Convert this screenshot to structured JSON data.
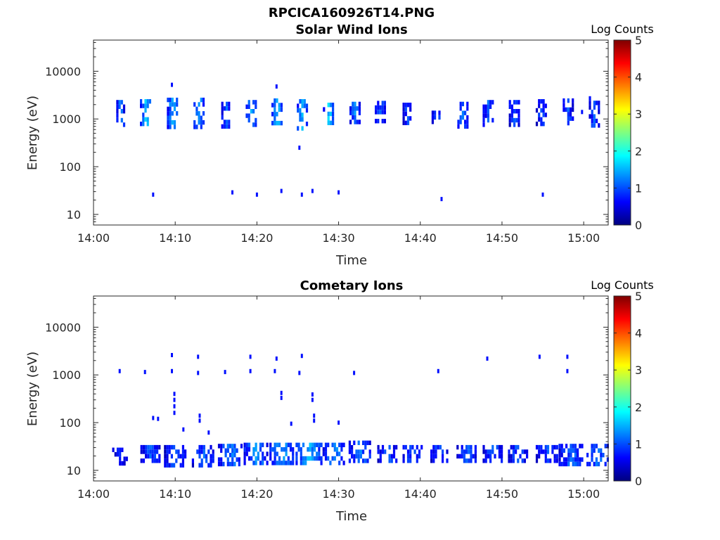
{
  "figure": {
    "title": "RPCICA160926T14.PNG"
  },
  "colors": {
    "axis": "#262626",
    "colormap": [
      "#00007f",
      "#0000ff",
      "#007fff",
      "#00ffff",
      "#7fff7f",
      "#ffff00",
      "#ff7f00",
      "#ff0000",
      "#7f0000"
    ]
  },
  "chart_data": [
    {
      "type": "heatmap",
      "title": "Solar Wind Ions",
      "xlabel": "Time",
      "ylabel": "Energy (eV)",
      "yscale": "log",
      "xlim": [
        "14:00",
        "15:03"
      ],
      "ylim": [
        6,
        45000
      ],
      "xticks": [
        "14:00",
        "14:10",
        "14:20",
        "14:30",
        "14:40",
        "14:50",
        "15:00"
      ],
      "yticks": [
        "10",
        "100",
        "1000",
        "10000"
      ],
      "colorbar": {
        "label": "Log Counts",
        "min": 0,
        "max": 5,
        "ticks": [
          "0",
          "1",
          "2",
          "3",
          "4",
          "5"
        ]
      },
      "bursts": [
        {
          "t": 3.2,
          "e_low": 700,
          "e_high": 2500,
          "level": 1.2,
          "width": 0.5
        },
        {
          "t": 6.3,
          "e_low": 750,
          "e_high": 2600,
          "level": 1.6,
          "width": 0.9
        },
        {
          "t": 9.6,
          "e_low": 750,
          "e_high": 2800,
          "level": 1.5,
          "width": 0.9
        },
        {
          "t": 12.8,
          "e_low": 750,
          "e_high": 2800,
          "level": 1.4,
          "width": 0.8
        },
        {
          "t": 16.1,
          "e_low": 700,
          "e_high": 2300,
          "level": 1.1,
          "width": 0.6
        },
        {
          "t": 19.2,
          "e_low": 800,
          "e_high": 2500,
          "level": 1.4,
          "width": 0.8
        },
        {
          "t": 22.4,
          "e_low": 750,
          "e_high": 2700,
          "level": 1.5,
          "width": 0.9
        },
        {
          "t": 25.5,
          "e_low": 700,
          "e_high": 2600,
          "level": 1.6,
          "width": 0.9
        },
        {
          "t": 28.7,
          "e_low": 750,
          "e_high": 2200,
          "level": 1.7,
          "width": 0.9
        },
        {
          "t": 31.9,
          "e_low": 800,
          "e_high": 2300,
          "level": 1.2,
          "width": 0.8
        },
        {
          "t": 35.1,
          "e_low": 800,
          "e_high": 2400,
          "level": 1.1,
          "width": 1.0
        },
        {
          "t": 38.3,
          "e_low": 850,
          "e_high": 2200,
          "level": 1.0,
          "width": 0.6
        },
        {
          "t": 41.9,
          "e_low": 800,
          "e_high": 1500,
          "level": 1.0,
          "width": 0.7
        },
        {
          "t": 45.1,
          "e_low": 700,
          "e_high": 2300,
          "level": 1.1,
          "width": 0.8
        },
        {
          "t": 48.2,
          "e_low": 750,
          "e_high": 2500,
          "level": 1.0,
          "width": 0.8
        },
        {
          "t": 51.4,
          "e_low": 750,
          "e_high": 2500,
          "level": 1.0,
          "width": 0.8
        },
        {
          "t": 54.7,
          "e_low": 750,
          "e_high": 2600,
          "level": 1.0,
          "width": 0.8
        },
        {
          "t": 58.0,
          "e_low": 750,
          "e_high": 2700,
          "level": 1.0,
          "width": 0.8
        },
        {
          "t": 61.2,
          "e_low": 800,
          "e_high": 3000,
          "level": 1.0,
          "width": 0.8
        }
      ],
      "dots": [
        {
          "t": 9.6,
          "e": 5200,
          "level": 0.7
        },
        {
          "t": 22.4,
          "e": 4800,
          "level": 0.7
        },
        {
          "t": 25.2,
          "e": 250,
          "level": 0.7
        },
        {
          "t": 7.3,
          "e": 26,
          "level": 0.7
        },
        {
          "t": 17.0,
          "e": 29,
          "level": 0.7
        },
        {
          "t": 20.0,
          "e": 26,
          "level": 0.7
        },
        {
          "t": 23.0,
          "e": 31,
          "level": 0.7
        },
        {
          "t": 25.5,
          "e": 26,
          "level": 0.7
        },
        {
          "t": 26.8,
          "e": 31,
          "level": 0.7
        },
        {
          "t": 30.0,
          "e": 29,
          "level": 0.7
        },
        {
          "t": 42.6,
          "e": 21,
          "level": 0.7
        },
        {
          "t": 55.0,
          "e": 26,
          "level": 0.7
        },
        {
          "t": 59.8,
          "e": 1400,
          "level": 0.7
        }
      ]
    },
    {
      "type": "heatmap",
      "title": "Cometary Ions",
      "xlabel": "Time",
      "ylabel": "Energy (eV)",
      "yscale": "log",
      "xlim": [
        "14:00",
        "15:03"
      ],
      "ylim": [
        6,
        45000
      ],
      "xticks": [
        "14:00",
        "14:10",
        "14:20",
        "14:30",
        "14:40",
        "14:50",
        "15:00"
      ],
      "yticks": [
        "10",
        "100",
        "1000",
        "10000"
      ],
      "colorbar": {
        "label": "Log Counts",
        "min": 0,
        "max": 5,
        "ticks": [
          "0",
          "1",
          "2",
          "3",
          "4",
          "5"
        ]
      },
      "bursts": [
        {
          "t": 3.2,
          "e_low": 13,
          "e_high": 30,
          "level": 0.8,
          "width": 1.5
        },
        {
          "t": 6.9,
          "e_low": 15,
          "e_high": 34,
          "level": 1.0,
          "width": 2.0
        },
        {
          "t": 9.9,
          "e_low": 14,
          "e_high": 34,
          "level": 1.0,
          "width": 2.2
        },
        {
          "t": 13.4,
          "e_low": 14,
          "e_high": 34,
          "level": 1.0,
          "width": 2.4
        },
        {
          "t": 16.7,
          "e_low": 14,
          "e_high": 36,
          "level": 1.2,
          "width": 2.6
        },
        {
          "t": 19.8,
          "e_low": 14,
          "e_high": 38,
          "level": 1.3,
          "width": 2.5
        },
        {
          "t": 23.0,
          "e_low": 14,
          "e_high": 38,
          "level": 1.4,
          "width": 2.6
        },
        {
          "t": 26.3,
          "e_low": 14,
          "e_high": 38,
          "level": 1.5,
          "width": 2.8
        },
        {
          "t": 29.4,
          "e_low": 15,
          "e_high": 38,
          "level": 1.3,
          "width": 2.4
        },
        {
          "t": 32.6,
          "e_low": 15,
          "e_high": 42,
          "level": 1.1,
          "width": 2.4
        },
        {
          "t": 35.9,
          "e_low": 16,
          "e_high": 34,
          "level": 1.0,
          "width": 2.0
        },
        {
          "t": 39.0,
          "e_low": 16,
          "e_high": 34,
          "level": 1.0,
          "width": 2.0
        },
        {
          "t": 42.2,
          "e_low": 16,
          "e_high": 34,
          "level": 1.0,
          "width": 1.6
        },
        {
          "t": 45.6,
          "e_low": 16,
          "e_high": 34,
          "level": 1.0,
          "width": 2.0
        },
        {
          "t": 48.8,
          "e_low": 16,
          "e_high": 34,
          "level": 1.0,
          "width": 2.0
        },
        {
          "t": 51.9,
          "e_low": 16,
          "e_high": 34,
          "level": 1.0,
          "width": 2.0
        },
        {
          "t": 55.5,
          "e_low": 16,
          "e_high": 34,
          "level": 1.0,
          "width": 2.4
        },
        {
          "t": 58.4,
          "e_low": 13,
          "e_high": 36,
          "level": 1.1,
          "width": 2.6
        },
        {
          "t": 61.6,
          "e_low": 14,
          "e_high": 36,
          "level": 1.1,
          "width": 2.2
        }
      ],
      "dots": [
        {
          "t": 3.2,
          "e": 1200,
          "level": 0.7
        },
        {
          "t": 6.3,
          "e": 1150,
          "level": 0.7
        },
        {
          "t": 9.6,
          "e": 2600,
          "level": 0.7
        },
        {
          "t": 9.6,
          "e": 1200,
          "level": 0.7
        },
        {
          "t": 12.8,
          "e": 2400,
          "level": 0.7
        },
        {
          "t": 12.8,
          "e": 1100,
          "level": 0.7
        },
        {
          "t": 16.1,
          "e": 1150,
          "level": 0.7
        },
        {
          "t": 19.2,
          "e": 2400,
          "level": 0.7
        },
        {
          "t": 19.2,
          "e": 1200,
          "level": 0.7
        },
        {
          "t": 22.4,
          "e": 2200,
          "level": 0.7
        },
        {
          "t": 22.2,
          "e": 1200,
          "level": 0.7
        },
        {
          "t": 25.5,
          "e": 2500,
          "level": 0.7
        },
        {
          "t": 25.2,
          "e": 1100,
          "level": 0.7
        },
        {
          "t": 31.9,
          "e": 1100,
          "level": 0.7
        },
        {
          "t": 42.2,
          "e": 1200,
          "level": 0.7
        },
        {
          "t": 48.2,
          "e": 2200,
          "level": 0.7
        },
        {
          "t": 54.6,
          "e": 2400,
          "level": 0.7
        },
        {
          "t": 58.0,
          "e": 2400,
          "level": 0.7
        },
        {
          "t": 58.0,
          "e": 1200,
          "level": 0.7
        },
        {
          "t": 7.3,
          "e": 125,
          "level": 0.7
        },
        {
          "t": 7.9,
          "e": 120,
          "level": 0.7
        },
        {
          "t": 9.9,
          "e": 400,
          "level": 0.7
        },
        {
          "t": 9.9,
          "e": 300,
          "level": 0.7
        },
        {
          "t": 9.9,
          "e": 220,
          "level": 0.7
        },
        {
          "t": 9.9,
          "e": 160,
          "level": 0.7
        },
        {
          "t": 11.0,
          "e": 72,
          "level": 0.7
        },
        {
          "t": 13.0,
          "e": 140,
          "level": 0.7
        },
        {
          "t": 13.0,
          "e": 110,
          "level": 0.7
        },
        {
          "t": 14.1,
          "e": 62,
          "level": 0.7
        },
        {
          "t": 23.0,
          "e": 420,
          "level": 0.7
        },
        {
          "t": 23.0,
          "e": 330,
          "level": 0.7
        },
        {
          "t": 24.2,
          "e": 95,
          "level": 0.7
        },
        {
          "t": 26.8,
          "e": 390,
          "level": 0.7
        },
        {
          "t": 26.8,
          "e": 300,
          "level": 0.7
        },
        {
          "t": 27.0,
          "e": 140,
          "level": 0.7
        },
        {
          "t": 27.0,
          "e": 110,
          "level": 0.7
        },
        {
          "t": 30.0,
          "e": 100,
          "level": 0.7
        }
      ]
    }
  ]
}
